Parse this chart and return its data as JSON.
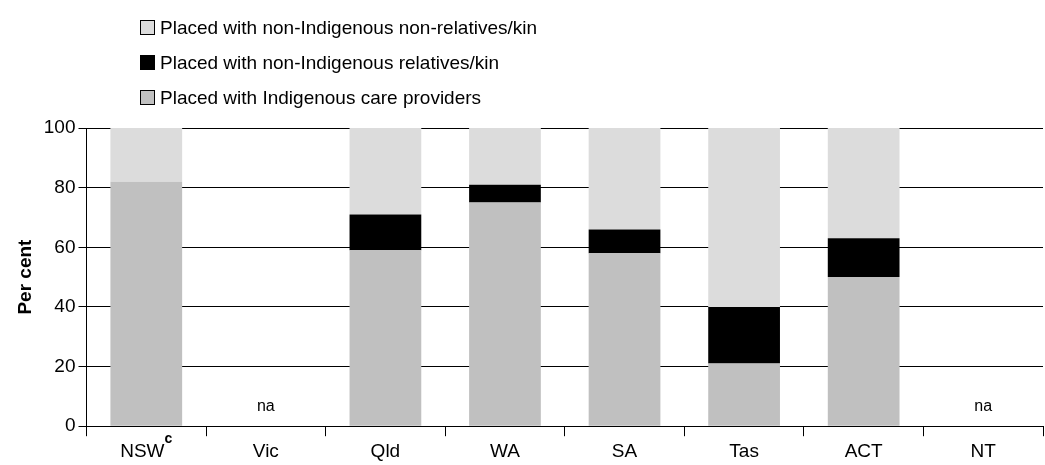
{
  "chart_data": {
    "type": "bar",
    "stacked": true,
    "ylabel": "Per cent",
    "categories": [
      "NSW$^{c}$",
      "Vic",
      "Qld",
      "WA",
      "SA",
      "Tas",
      "ACT",
      "NT"
    ],
    "series": [
      {
        "name": "Placed with Indigenous care providers",
        "color": "#c0c0c0",
        "values": [
          82,
          null,
          59,
          75,
          58,
          21,
          50,
          null
        ]
      },
      {
        "name": "Placed with non-Indigenous relatives/kin",
        "color": "#000000",
        "values": [
          0,
          null,
          12,
          6,
          8,
          19,
          13,
          null
        ]
      },
      {
        "name": "Placed with non-Indigenous non-relatives/kin",
        "color": "#dcdcdc",
        "values": [
          18,
          null,
          29,
          19,
          34,
          60,
          37,
          null
        ]
      }
    ],
    "ylim": [
      0,
      100
    ],
    "yticks": [
      0,
      20,
      40,
      60,
      80,
      100
    ],
    "grid": "y",
    "legend": "top left",
    "annotations": [
      "na",
      "na"
    ]
  }
}
